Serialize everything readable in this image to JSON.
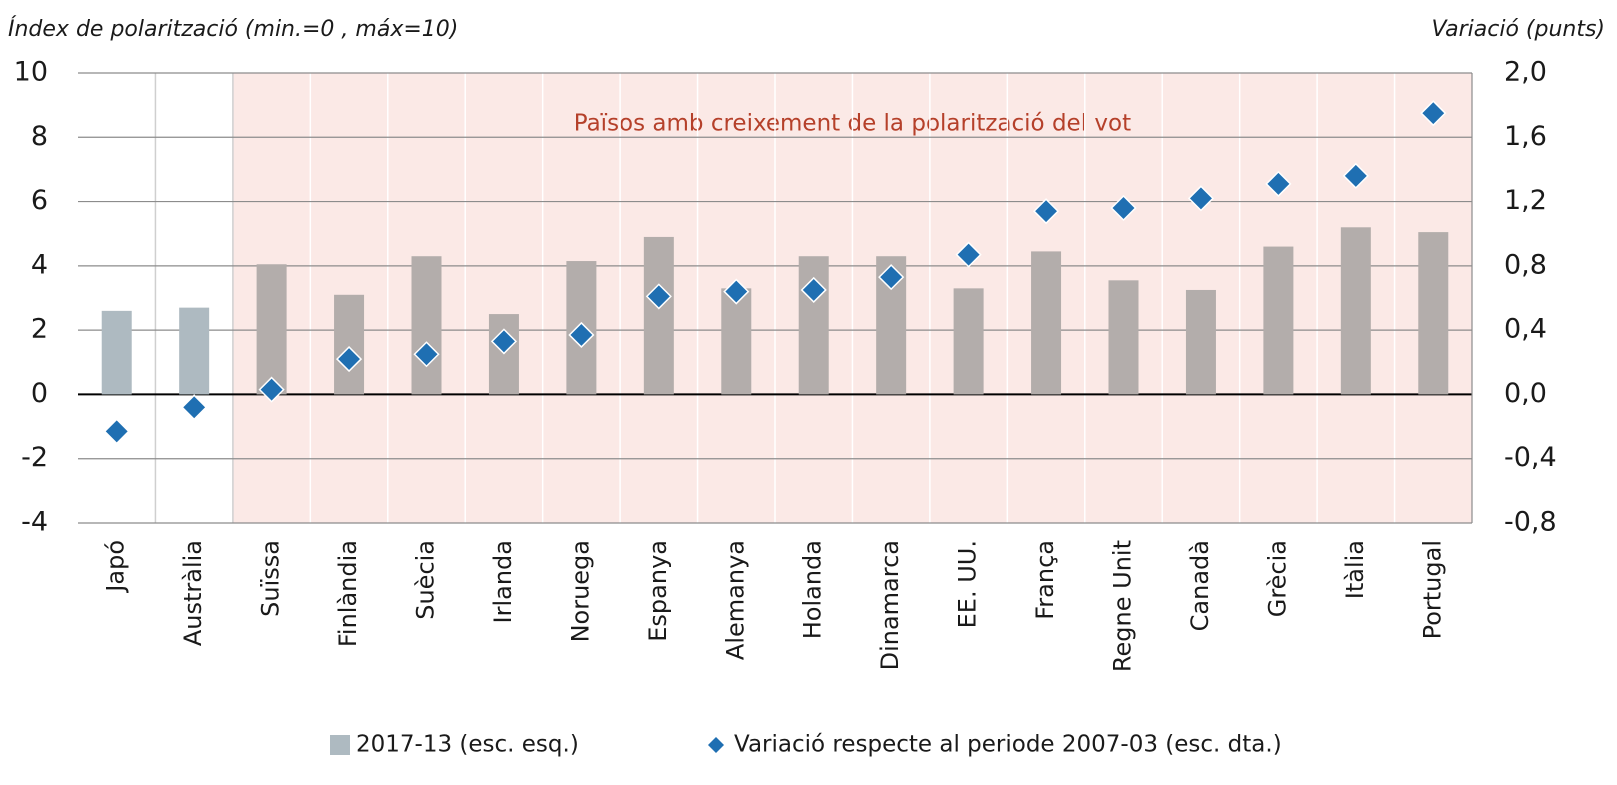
{
  "chart_data": {
    "type": "bar",
    "y_label": "Índex de polarització (min.=0 , máx=10)",
    "y2_label": "Variació (punts)",
    "categories": [
      "Japó",
      "Austràlia",
      "Suïssa",
      "Finlàndia",
      "Suècia",
      "Irlanda",
      "Noruega",
      "Espanya",
      "Alemanya",
      "Holanda",
      "Dinamarca",
      "EE. UU.",
      "França",
      "Regne Unit",
      "Canadà",
      "Grècia",
      "Itàlia",
      "Portugal"
    ],
    "series": [
      {
        "name": "2017-13 (esc. esq.)",
        "type": "bar",
        "color": "#aebac1",
        "bar_colors": [
          "#aebac1",
          "#aebac1",
          "#b3adab",
          "#b3adab",
          "#b3adab",
          "#b3adab",
          "#b3adab",
          "#b3adab",
          "#b3adab",
          "#b3adab",
          "#b3adab",
          "#b3adab",
          "#b3adab",
          "#b3adab",
          "#b3adab",
          "#b3adab",
          "#b3adab",
          "#b3adab"
        ],
        "values": [
          2.6,
          2.7,
          4.05,
          3.1,
          4.3,
          2.5,
          4.15,
          4.9,
          3.3,
          4.3,
          4.3,
          3.3,
          4.45,
          3.55,
          3.25,
          4.6,
          5.2,
          5.05
        ]
      },
      {
        "name": "Variació respecte al periode 2007-03 (esc. dta.)",
        "type": "scatter",
        "axis": "y2",
        "color": "#1f6fb2",
        "values": [
          -0.23,
          -0.08,
          0.03,
          0.22,
          0.25,
          0.33,
          0.37,
          0.61,
          0.64,
          0.65,
          0.73,
          0.87,
          1.14,
          1.16,
          1.22,
          1.31,
          1.36,
          1.75
        ]
      }
    ],
    "highlight": {
      "label": "Països amb creixement de la polarització del vot",
      "from": "Suïssa",
      "to": "Portugal",
      "color": "#fbe9e6"
    },
    "ylim": [
      -4,
      10
    ],
    "yticks": [
      -4,
      -2,
      0,
      2,
      4,
      6,
      8,
      10
    ],
    "y2lim": [
      -0.8,
      2.0
    ],
    "y2ticks": [
      {
        "value": -0.8,
        "label": "-0,8"
      },
      {
        "value": -0.4,
        "label": "-0,4"
      },
      {
        "value": 0,
        "label": "0,0"
      },
      {
        "value": 0.4,
        "label": "0,4"
      },
      {
        "value": 0.8,
        "label": "0,8"
      },
      {
        "value": 1.2,
        "label": "1,2"
      },
      {
        "value": 1.6,
        "label": "1,6"
      },
      {
        "value": 2.0,
        "label": "2,0"
      }
    ],
    "grid": true,
    "legend": "bottom"
  }
}
